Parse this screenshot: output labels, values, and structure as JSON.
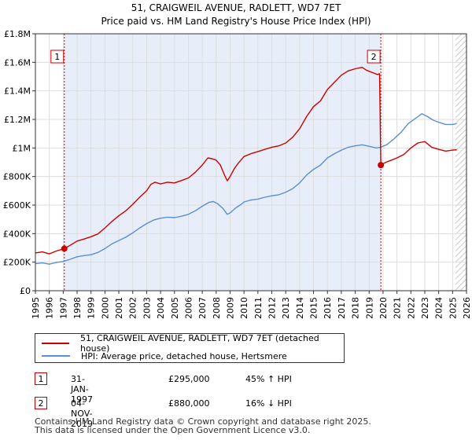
{
  "colors": {
    "property": "#cc0000",
    "hpi": "#5b8fcf",
    "shade": "#e8eef9",
    "hatch": "#bbbbbb",
    "grid": "#dddddd"
  },
  "chart_data": {
    "type": "line",
    "title": "51, CRAIGWEIL AVENUE, RADLETT, WD7 7ET",
    "subtitle": "Price paid vs. HM Land Registry's House Price Index (HPI)",
    "xlim": [
      1995,
      2026
    ],
    "ylim": [
      0,
      1800000
    ],
    "x_ticks": [
      "1995",
      "1996",
      "1997",
      "1998",
      "1999",
      "2000",
      "2001",
      "2002",
      "2003",
      "2004",
      "2005",
      "2006",
      "2007",
      "2008",
      "2009",
      "2010",
      "2011",
      "2012",
      "2013",
      "2014",
      "2015",
      "2016",
      "2017",
      "2018",
      "2019",
      "2020",
      "2021",
      "2022",
      "2023",
      "2024",
      "2025",
      "2026"
    ],
    "y_ticks": [
      {
        "value": 0,
        "label": "£0"
      },
      {
        "value": 200000,
        "label": "£200K"
      },
      {
        "value": 400000,
        "label": "£400K"
      },
      {
        "value": 600000,
        "label": "£600K"
      },
      {
        "value": 800000,
        "label": "£800K"
      },
      {
        "value": 1000000,
        "label": "£1M"
      },
      {
        "value": 1200000,
        "label": "£1.2M"
      },
      {
        "value": 1400000,
        "label": "£1.4M"
      },
      {
        "value": 1600000,
        "label": "£1.6M"
      },
      {
        "value": 1800000,
        "label": "£1.8M"
      }
    ],
    "shaded_ranges": [
      [
        1997.08,
        2019.84
      ]
    ],
    "forecast_from": 2025.2,
    "markers": [
      {
        "label": "1",
        "x": 1997.08,
        "y": 295000
      },
      {
        "label": "2",
        "x": 2019.84,
        "y": 880000
      }
    ],
    "series": [
      {
        "name": "51, CRAIGWEIL AVENUE, RADLETT, WD7 7ET (detached house)",
        "color": "#cc0000",
        "points": [
          [
            1995.0,
            265000
          ],
          [
            1995.5,
            272000
          ],
          [
            1996.0,
            258000
          ],
          [
            1996.5,
            278000
          ],
          [
            1997.08,
            295000
          ],
          [
            1997.5,
            318000
          ],
          [
            1998.0,
            348000
          ],
          [
            1998.5,
            362000
          ],
          [
            1999.0,
            378000
          ],
          [
            1999.5,
            398000
          ],
          [
            2000.0,
            440000
          ],
          [
            2000.5,
            485000
          ],
          [
            2001.0,
            525000
          ],
          [
            2001.5,
            560000
          ],
          [
            2002.0,
            605000
          ],
          [
            2002.5,
            655000
          ],
          [
            2003.0,
            700000
          ],
          [
            2003.3,
            745000
          ],
          [
            2003.6,
            760000
          ],
          [
            2004.0,
            748000
          ],
          [
            2004.5,
            760000
          ],
          [
            2005.0,
            755000
          ],
          [
            2005.5,
            772000
          ],
          [
            2006.0,
            790000
          ],
          [
            2006.5,
            830000
          ],
          [
            2007.0,
            880000
          ],
          [
            2007.4,
            930000
          ],
          [
            2007.7,
            925000
          ],
          [
            2008.0,
            915000
          ],
          [
            2008.3,
            880000
          ],
          [
            2008.6,
            810000
          ],
          [
            2008.8,
            770000
          ],
          [
            2009.0,
            800000
          ],
          [
            2009.3,
            855000
          ],
          [
            2009.6,
            895000
          ],
          [
            2010.0,
            940000
          ],
          [
            2010.5,
            960000
          ],
          [
            2011.0,
            975000
          ],
          [
            2011.5,
            990000
          ],
          [
            2012.0,
            1005000
          ],
          [
            2012.5,
            1015000
          ],
          [
            2013.0,
            1035000
          ],
          [
            2013.5,
            1075000
          ],
          [
            2014.0,
            1135000
          ],
          [
            2014.5,
            1220000
          ],
          [
            2015.0,
            1290000
          ],
          [
            2015.5,
            1330000
          ],
          [
            2016.0,
            1410000
          ],
          [
            2016.5,
            1460000
          ],
          [
            2017.0,
            1510000
          ],
          [
            2017.5,
            1540000
          ],
          [
            2018.0,
            1555000
          ],
          [
            2018.5,
            1565000
          ],
          [
            2018.8,
            1545000
          ],
          [
            2019.2,
            1530000
          ],
          [
            2019.6,
            1515000
          ],
          [
            2019.75,
            1520000
          ],
          [
            2019.84,
            880000
          ],
          [
            2020.2,
            900000
          ],
          [
            2020.6,
            915000
          ],
          [
            2021.0,
            930000
          ],
          [
            2021.5,
            955000
          ],
          [
            2022.0,
            1000000
          ],
          [
            2022.5,
            1035000
          ],
          [
            2023.0,
            1045000
          ],
          [
            2023.5,
            1005000
          ],
          [
            2024.0,
            990000
          ],
          [
            2024.5,
            978000
          ],
          [
            2025.0,
            985000
          ],
          [
            2025.3,
            988000
          ]
        ]
      },
      {
        "name": "HPI: Average price, detached house, Hertsmere",
        "color": "#5b8fcf",
        "points": [
          [
            1995.0,
            190000
          ],
          [
            1995.5,
            195000
          ],
          [
            1996.0,
            186000
          ],
          [
            1996.5,
            198000
          ],
          [
            1997.0,
            205000
          ],
          [
            1997.5,
            220000
          ],
          [
            1998.0,
            238000
          ],
          [
            1998.5,
            246000
          ],
          [
            1999.0,
            252000
          ],
          [
            1999.5,
            268000
          ],
          [
            2000.0,
            295000
          ],
          [
            2000.5,
            328000
          ],
          [
            2001.0,
            352000
          ],
          [
            2001.5,
            375000
          ],
          [
            2002.0,
            405000
          ],
          [
            2002.5,
            440000
          ],
          [
            2003.0,
            470000
          ],
          [
            2003.5,
            495000
          ],
          [
            2004.0,
            508000
          ],
          [
            2004.5,
            515000
          ],
          [
            2005.0,
            512000
          ],
          [
            2005.5,
            522000
          ],
          [
            2006.0,
            535000
          ],
          [
            2006.5,
            560000
          ],
          [
            2007.0,
            592000
          ],
          [
            2007.5,
            620000
          ],
          [
            2007.8,
            625000
          ],
          [
            2008.1,
            610000
          ],
          [
            2008.5,
            575000
          ],
          [
            2008.8,
            535000
          ],
          [
            2009.0,
            545000
          ],
          [
            2009.4,
            580000
          ],
          [
            2009.8,
            605000
          ],
          [
            2010.0,
            622000
          ],
          [
            2010.5,
            635000
          ],
          [
            2011.0,
            642000
          ],
          [
            2011.5,
            655000
          ],
          [
            2012.0,
            665000
          ],
          [
            2012.5,
            672000
          ],
          [
            2013.0,
            690000
          ],
          [
            2013.5,
            715000
          ],
          [
            2014.0,
            755000
          ],
          [
            2014.5,
            810000
          ],
          [
            2015.0,
            850000
          ],
          [
            2015.5,
            880000
          ],
          [
            2016.0,
            930000
          ],
          [
            2016.5,
            960000
          ],
          [
            2017.0,
            985000
          ],
          [
            2017.5,
            1005000
          ],
          [
            2018.0,
            1015000
          ],
          [
            2018.5,
            1022000
          ],
          [
            2019.0,
            1012000
          ],
          [
            2019.5,
            1000000
          ],
          [
            2019.84,
            1005000
          ],
          [
            2020.3,
            1025000
          ],
          [
            2020.8,
            1065000
          ],
          [
            2021.3,
            1110000
          ],
          [
            2021.8,
            1170000
          ],
          [
            2022.3,
            1205000
          ],
          [
            2022.8,
            1240000
          ],
          [
            2023.2,
            1220000
          ],
          [
            2023.6,
            1195000
          ],
          [
            2024.0,
            1180000
          ],
          [
            2024.5,
            1165000
          ],
          [
            2025.0,
            1165000
          ],
          [
            2025.3,
            1170000
          ]
        ]
      }
    ]
  },
  "legend": {
    "property_label": "51, CRAIGWEIL AVENUE, RADLETT, WD7 7ET (detached house)",
    "hpi_label": "HPI: Average price, detached house, Hertsmere"
  },
  "transactions": [
    {
      "num": "1",
      "date": "31-JAN-1997",
      "price": "£295,000",
      "hpi": "45% ↑ HPI"
    },
    {
      "num": "2",
      "date": "04-NOV-2019",
      "price": "£880,000",
      "hpi": "16% ↓ HPI"
    }
  ],
  "footer": {
    "line1": "Contains HM Land Registry data © Crown copyright and database right 2025.",
    "line2": "This data is licensed under the Open Government Licence v3.0."
  }
}
